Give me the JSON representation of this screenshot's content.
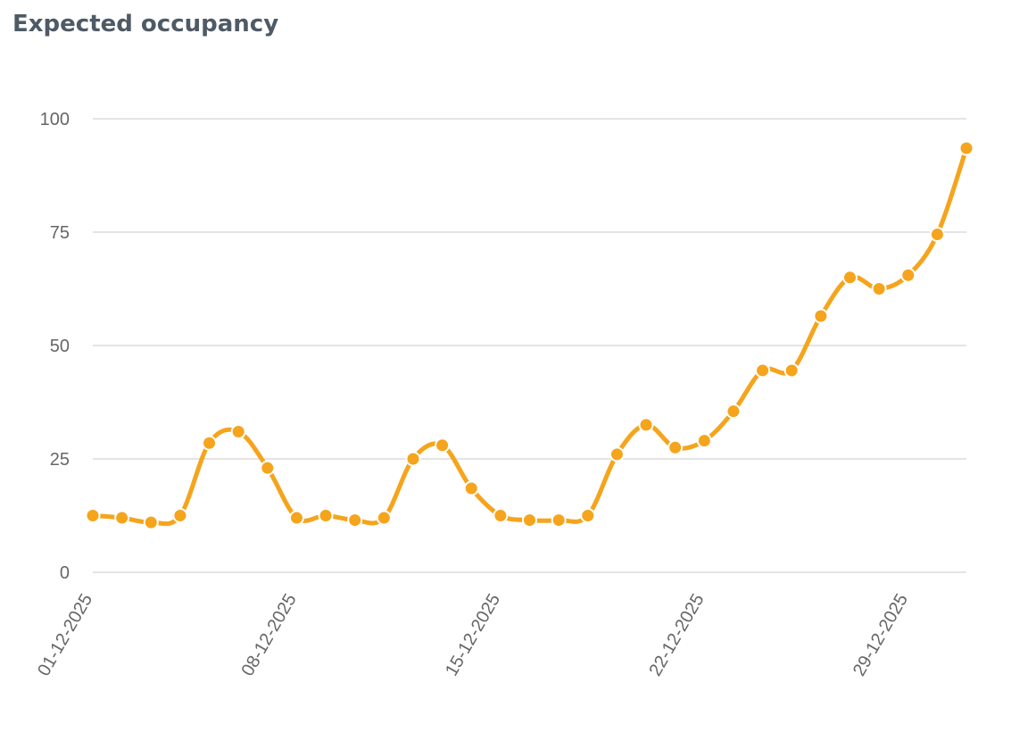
{
  "chart_data": {
    "type": "line",
    "title": "Expected occupancy",
    "xlabel": "",
    "ylabel": "",
    "ylim": [
      0,
      100
    ],
    "yticks": [
      0,
      25,
      50,
      75,
      100
    ],
    "grid": true,
    "legend": "none",
    "color": "#f5a41c",
    "x": [
      "01-12-2025",
      "02-12-2025",
      "03-12-2025",
      "04-12-2025",
      "05-12-2025",
      "06-12-2025",
      "07-12-2025",
      "08-12-2025",
      "09-12-2025",
      "10-12-2025",
      "11-12-2025",
      "12-12-2025",
      "13-12-2025",
      "14-12-2025",
      "15-12-2025",
      "16-12-2025",
      "17-12-2025",
      "18-12-2025",
      "19-12-2025",
      "20-12-2025",
      "21-12-2025",
      "22-12-2025",
      "23-12-2025",
      "24-12-2025",
      "25-12-2025",
      "26-12-2025",
      "27-12-2025",
      "28-12-2025",
      "29-12-2025",
      "30-12-2025",
      "31-12-2025"
    ],
    "xtick_labels": [
      "01-12-2025",
      "08-12-2025",
      "15-12-2025",
      "22-12-2025",
      "29-12-2025"
    ],
    "series": [
      {
        "values": [
          12.5,
          12.0,
          11.0,
          12.5,
          28.5,
          31.0,
          23.0,
          12.0,
          12.5,
          11.5,
          12.0,
          25.0,
          28.0,
          18.5,
          12.5,
          11.5,
          11.5,
          12.5,
          26.0,
          32.5,
          27.5,
          29.0,
          35.5,
          44.5,
          44.5,
          56.5,
          65.0,
          62.5,
          65.5,
          74.5,
          93.5
        ]
      }
    ]
  }
}
